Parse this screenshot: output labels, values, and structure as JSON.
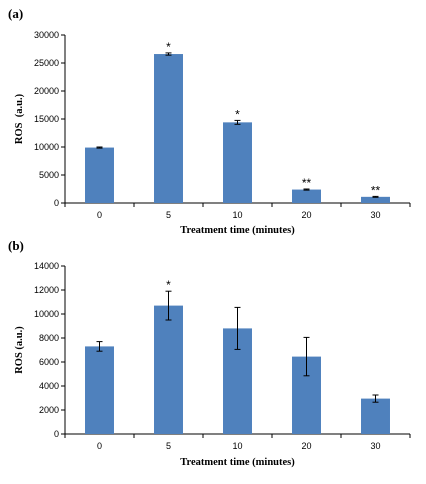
{
  "chart_data": [
    {
      "type": "bar",
      "panel_label": "(a)",
      "categories": [
        "0",
        "5",
        "10",
        "20",
        "30"
      ],
      "values": [
        9900,
        26600,
        14400,
        2400,
        1100
      ],
      "errors": [
        100,
        200,
        350,
        100,
        80
      ],
      "annotations": [
        "",
        "*",
        "*",
        "**",
        "**"
      ],
      "xlabel": "Treatment time (minutes)",
      "ylabel": "ROS  (a.u.)",
      "ylim": [
        0,
        30000
      ],
      "yticks": [
        0,
        5000,
        10000,
        15000,
        20000,
        25000,
        30000
      ],
      "bar_color": "#4f81bd",
      "grid": false
    },
    {
      "type": "bar",
      "panel_label": "(b)",
      "categories": [
        "0",
        "5",
        "10",
        "20",
        "30"
      ],
      "values": [
        7300,
        10700,
        8800,
        6450,
        2950
      ],
      "errors": [
        400,
        1200,
        1750,
        1600,
        300
      ],
      "annotations": [
        "",
        "*",
        "",
        "",
        ""
      ],
      "xlabel": "Treatment time (minutes)",
      "ylabel": "ROS (a.u.)",
      "ylim": [
        0,
        14000
      ],
      "yticks": [
        0,
        2000,
        4000,
        6000,
        8000,
        10000,
        12000,
        14000
      ],
      "bar_color": "#4f81bd",
      "grid": false
    }
  ]
}
